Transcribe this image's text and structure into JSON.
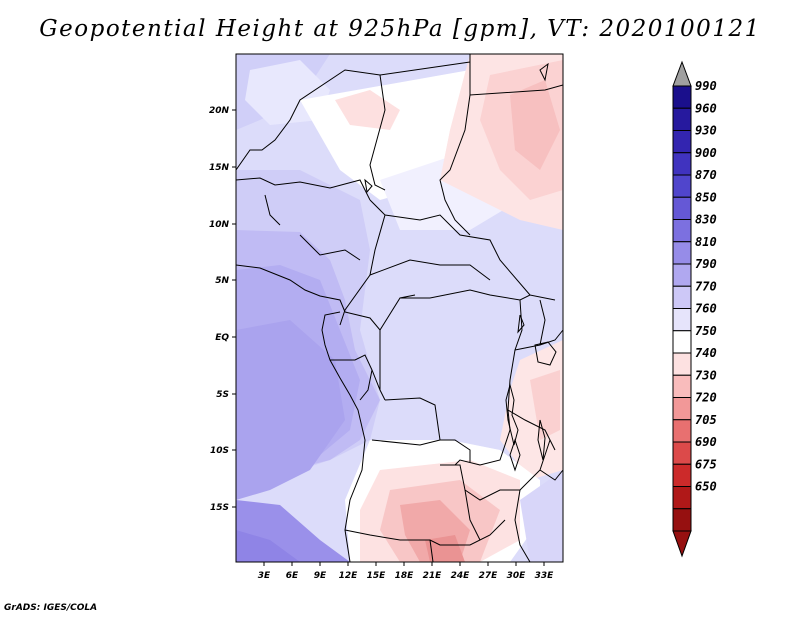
{
  "title": "Geopotential Height at 925hPa [gpm], VT: 2020100121",
  "footer": "GrADS: IGES/COLA",
  "map": {
    "lat_labels": [
      "20N",
      "15N",
      "10N",
      "5N",
      "EQ",
      "5S",
      "10S",
      "15S"
    ],
    "lon_labels": [
      "3E",
      "6E",
      "9E",
      "12E",
      "15E",
      "18E",
      "21E",
      "24E",
      "27E",
      "30E",
      "33E"
    ]
  },
  "colorbar": {
    "levels": [
      "990",
      "960",
      "930",
      "900",
      "870",
      "850",
      "830",
      "810",
      "790",
      "770",
      "760",
      "750",
      "740",
      "730",
      "720",
      "705",
      "690",
      "675",
      "650"
    ],
    "colors": [
      "#1a0f8c",
      "#26199e",
      "#3325b0",
      "#4033bf",
      "#5045cc",
      "#6558d6",
      "#7c70e0",
      "#968ce8",
      "#b0a8f0",
      "#cdc8f7",
      "#e6e4fb",
      "#ffffff",
      "#fde1e1",
      "#f9bcbc",
      "#f29898",
      "#e87070",
      "#dc4a4a",
      "#cc2a2a",
      "#b01818",
      "#961010"
    ],
    "top_arrow_color": "#a0a0a0",
    "bottom_arrow_color": "#961010"
  }
}
